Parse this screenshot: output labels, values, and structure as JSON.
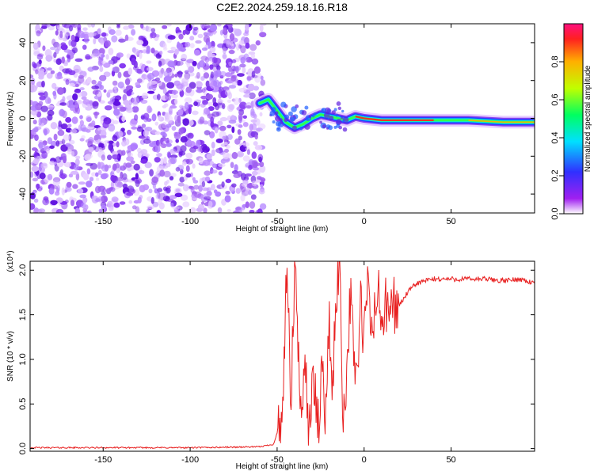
{
  "title": "C2E2.2024.259.18.16.R18",
  "chart_data": [
    {
      "type": "heatmap",
      "xlabel": "Height of straight line (km)",
      "ylabel": "Frequency (Hz)",
      "xlim": [
        -192,
        98
      ],
      "ylim": [
        -50,
        50
      ],
      "xticks": [
        -150,
        -100,
        -50,
        0,
        50
      ],
      "yticks": [
        -40,
        -20,
        0,
        20,
        40
      ],
      "noise_region_x": [
        -192,
        -58
      ],
      "signal_track": [
        {
          "x": -60,
          "y": 8
        },
        {
          "x": -55,
          "y": 10
        },
        {
          "x": -50,
          "y": 4
        },
        {
          "x": -45,
          "y": -2
        },
        {
          "x": -40,
          "y": -5
        },
        {
          "x": -35,
          "y": -3
        },
        {
          "x": -30,
          "y": 0
        },
        {
          "x": -25,
          "y": 2
        },
        {
          "x": -20,
          "y": 1
        },
        {
          "x": -15,
          "y": 0
        },
        {
          "x": -10,
          "y": -1
        },
        {
          "x": -5,
          "y": 1
        },
        {
          "x": 0,
          "y": 0
        },
        {
          "x": 10,
          "y": -1
        },
        {
          "x": 20,
          "y": -1
        },
        {
          "x": 40,
          "y": -1
        },
        {
          "x": 60,
          "y": -1
        },
        {
          "x": 80,
          "y": -2
        },
        {
          "x": 98,
          "y": -2
        }
      ],
      "colorbar": {
        "label": "Normalized spectral amplitude",
        "range": [
          0,
          1
        ],
        "ticks": [
          "0.0",
          "0.2",
          "0.4",
          "0.6",
          "0.8"
        ],
        "colors": [
          "#ffffff",
          "#a020f0",
          "#3030ff",
          "#00e0ff",
          "#00ff60",
          "#c0ff00",
          "#ffb000",
          "#ff2020",
          "#ff1080"
        ]
      }
    },
    {
      "type": "line",
      "xlabel": "Height of straight line (km)",
      "ylabel": "SNR (10 * v/v)",
      "multiplier": "(x10⁴)",
      "xlim": [
        -192,
        98
      ],
      "ylim": [
        -0.03,
        2.1
      ],
      "xticks": [
        -150,
        -100,
        -50,
        0,
        50
      ],
      "yticks": [
        "0.0",
        "0.5",
        "1.0",
        "1.5",
        "2.0"
      ],
      "color": "#e82020",
      "series": [
        {
          "x": -192,
          "y": 0.01
        },
        {
          "x": -100,
          "y": 0.01
        },
        {
          "x": -60,
          "y": 0.02
        },
        {
          "x": -52,
          "y": 0.05
        },
        {
          "x": -48,
          "y": 0.3
        },
        {
          "x": -46,
          "y": 0.8
        },
        {
          "x": -45,
          "y": 1.6
        },
        {
          "x": -44,
          "y": 1.9
        },
        {
          "x": -42,
          "y": 0.4
        },
        {
          "x": -40,
          "y": 2.0
        },
        {
          "x": -38,
          "y": 1.2
        },
        {
          "x": -36,
          "y": 0.1
        },
        {
          "x": -34,
          "y": 1.3
        },
        {
          "x": -32,
          "y": 0.05
        },
        {
          "x": -30,
          "y": 0.8
        },
        {
          "x": -28,
          "y": 0.5
        },
        {
          "x": -26,
          "y": 0.2
        },
        {
          "x": -24,
          "y": 1.0
        },
        {
          "x": -22,
          "y": 0.35
        },
        {
          "x": -20,
          "y": 1.4
        },
        {
          "x": -18,
          "y": 0.6
        },
        {
          "x": -16,
          "y": 1.8
        },
        {
          "x": -14,
          "y": 2.1
        },
        {
          "x": -12,
          "y": 0.3
        },
        {
          "x": -10,
          "y": 0.9
        },
        {
          "x": -8,
          "y": 1.7
        },
        {
          "x": -6,
          "y": 1.1
        },
        {
          "x": -4,
          "y": 0.8
        },
        {
          "x": -2,
          "y": 1.6
        },
        {
          "x": 0,
          "y": 1.2
        },
        {
          "x": 2,
          "y": 1.85
        },
        {
          "x": 4,
          "y": 1.3
        },
        {
          "x": 6,
          "y": 1.5
        },
        {
          "x": 8,
          "y": 1.75
        },
        {
          "x": 10,
          "y": 1.4
        },
        {
          "x": 12,
          "y": 1.6
        },
        {
          "x": 14,
          "y": 1.45
        },
        {
          "x": 16,
          "y": 1.65
        },
        {
          "x": 20,
          "y": 1.6
        },
        {
          "x": 25,
          "y": 1.75
        },
        {
          "x": 30,
          "y": 1.85
        },
        {
          "x": 35,
          "y": 1.88
        },
        {
          "x": 40,
          "y": 1.9
        },
        {
          "x": 50,
          "y": 1.9
        },
        {
          "x": 60,
          "y": 1.9
        },
        {
          "x": 70,
          "y": 1.9
        },
        {
          "x": 80,
          "y": 1.88
        },
        {
          "x": 90,
          "y": 1.9
        },
        {
          "x": 98,
          "y": 1.85
        }
      ]
    }
  ]
}
